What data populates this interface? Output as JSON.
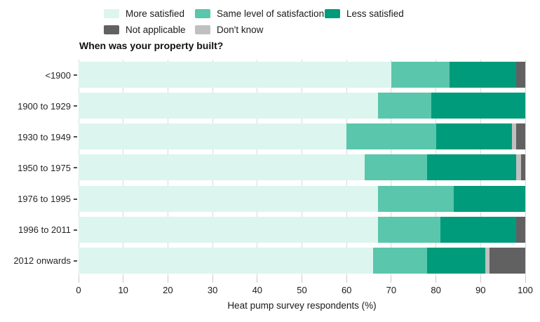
{
  "title": "When was your property built?",
  "legend": {
    "items": [
      {
        "label": "More satisfied",
        "color": "#dcf5ef"
      },
      {
        "label": "Same level of satisfaction",
        "color": "#5ac6ab"
      },
      {
        "label": "Less satisfied",
        "color": "#009b7b"
      },
      {
        "label": "Not applicable",
        "color": "#616161"
      },
      {
        "label": "Don't know",
        "color": "#c0c0c0"
      }
    ]
  },
  "chart_data": {
    "type": "bar",
    "orientation": "horizontal",
    "stacked": true,
    "title": "When was your property built?",
    "xlabel": "Heat pump survey respondents (%)",
    "ylabel": "",
    "xlim": [
      0,
      100
    ],
    "xticks": [
      0,
      10,
      20,
      30,
      40,
      50,
      60,
      70,
      80,
      90,
      100
    ],
    "grid": true,
    "legend_position": "top",
    "categories": [
      "<1900",
      "1900 to 1929",
      "1930 to 1949",
      "1950 to 1975",
      "1976 to 1995",
      "1996 to 2011",
      "2012 onwards"
    ],
    "series": [
      {
        "name": "More satisfied",
        "color": "#dcf5ef",
        "values": [
          70,
          67,
          60,
          64,
          67,
          67,
          66
        ]
      },
      {
        "name": "Same level of satisfaction",
        "color": "#5ac6ab",
        "values": [
          13,
          12,
          20,
          14,
          17,
          14,
          12
        ]
      },
      {
        "name": "Less satisfied",
        "color": "#009b7b",
        "values": [
          15,
          21,
          17,
          20,
          16,
          17,
          13
        ]
      },
      {
        "name": "Don't know",
        "color": "#c0c0c0",
        "values": [
          0,
          0,
          1,
          1,
          0,
          0,
          1
        ]
      },
      {
        "name": "Not applicable",
        "color": "#616161",
        "values": [
          2,
          0,
          2,
          1,
          0,
          2,
          8
        ]
      }
    ]
  }
}
